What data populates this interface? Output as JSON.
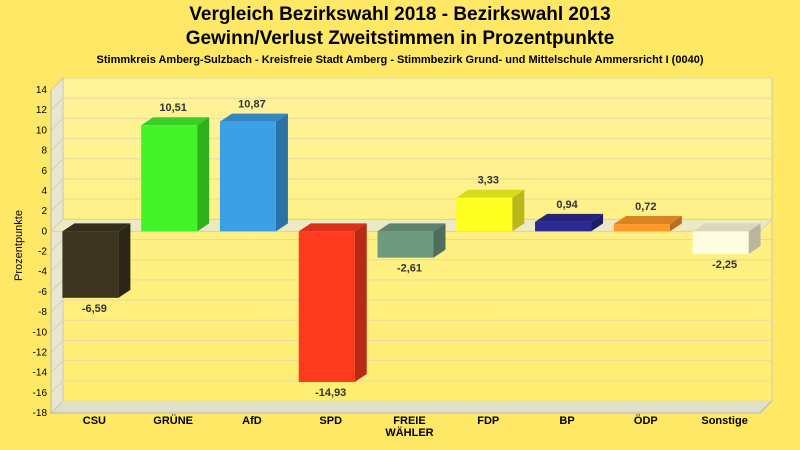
{
  "header": {
    "title_line1": "Vergleich Bezirkswahl 2018 - Bezirkswahl 2013",
    "title_line2": "Gewinn/Verlust Zweitstimmen in Prozentpunkte",
    "subtitle": "Stimmkreis Amberg-Sulzbach - Kreisfreie Stadt Amberg - Stimmbezirk Grund- und Mittelschule Ammersricht I (0040)"
  },
  "chart_data": {
    "type": "bar",
    "title": "Vergleich Bezirkswahl 2018 - Bezirkswahl 2013",
    "subtitle": "Gewinn/Verlust Zweitstimmen in Prozentpunkte",
    "ylabel": "Prozentpunkte",
    "xlabel": "",
    "ylim": [
      -18,
      14
    ],
    "yticks": [
      14,
      12,
      10,
      8,
      6,
      4,
      2,
      0,
      -2,
      -4,
      -6,
      -8,
      -10,
      -12,
      -14,
      -16,
      -18
    ],
    "grid": true,
    "categories": [
      "CSU",
      "GRÜNE",
      "AfD",
      "SPD",
      "FREIE WÄHLER",
      "FDP",
      "BP",
      "ÖDP",
      "Sonstige"
    ],
    "category_lines": [
      [
        "CSU"
      ],
      [
        "GRÜNE"
      ],
      [
        "AfD"
      ],
      [
        "SPD"
      ],
      [
        "FREIE",
        "WÄHLER"
      ],
      [
        "FDP"
      ],
      [
        "BP"
      ],
      [
        "ÖDP"
      ],
      [
        "Sonstige"
      ]
    ],
    "values": [
      -6.59,
      10.51,
      10.87,
      -14.93,
      -2.61,
      3.33,
      0.94,
      0.72,
      -2.25
    ],
    "value_labels": [
      "-6,59",
      "10,51",
      "10,87",
      "-14,93",
      "-2,61",
      "3,33",
      "0,94",
      "0,72",
      "-2,25"
    ],
    "colors": [
      "#3d3520",
      "#44f42a",
      "#3ca0e6",
      "#ff3a1e",
      "#6e9a80",
      "#ffff22",
      "#2a2a90",
      "#ff9a28",
      "#fffde0"
    ]
  }
}
